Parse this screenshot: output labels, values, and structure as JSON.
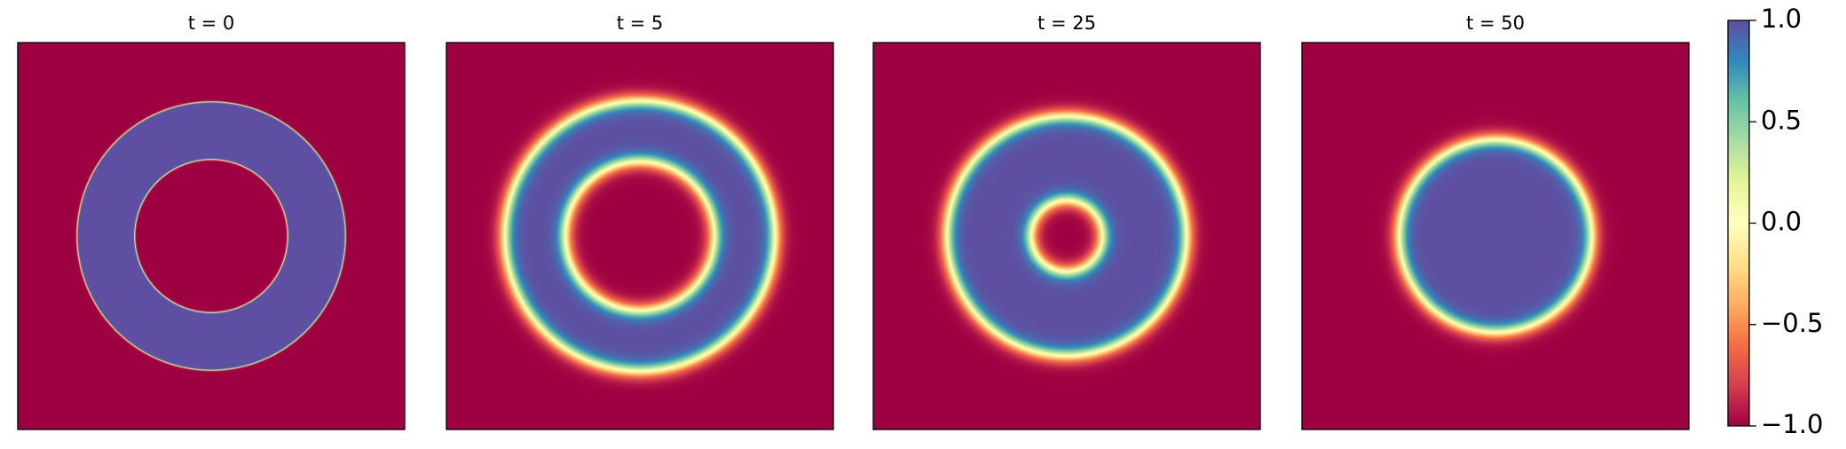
{
  "chart_data": {
    "type": "heatmap",
    "colormap": [
      "#9e0142",
      "#d53e4f",
      "#f46d43",
      "#fdae61",
      "#fee08b",
      "#ffffbf",
      "#e6f598",
      "#abdda4",
      "#66c2a5",
      "#3288bd",
      "#5e4fa2"
    ],
    "panels": [
      {
        "title": "t = 0"
      },
      {
        "title": "t = 5"
      },
      {
        "title": "t = 25"
      },
      {
        "title": "t = 50"
      }
    ],
    "clim": [
      -1,
      1
    ],
    "cticks": [
      {
        "value": -1,
        "label": "−1.0"
      },
      {
        "value": -0.5,
        "label": "−0.5"
      },
      {
        "value": 0,
        "label": "0.0"
      },
      {
        "value": 0.5,
        "label": "0.5"
      },
      {
        "value": 1,
        "label": "1.0"
      }
    ]
  }
}
